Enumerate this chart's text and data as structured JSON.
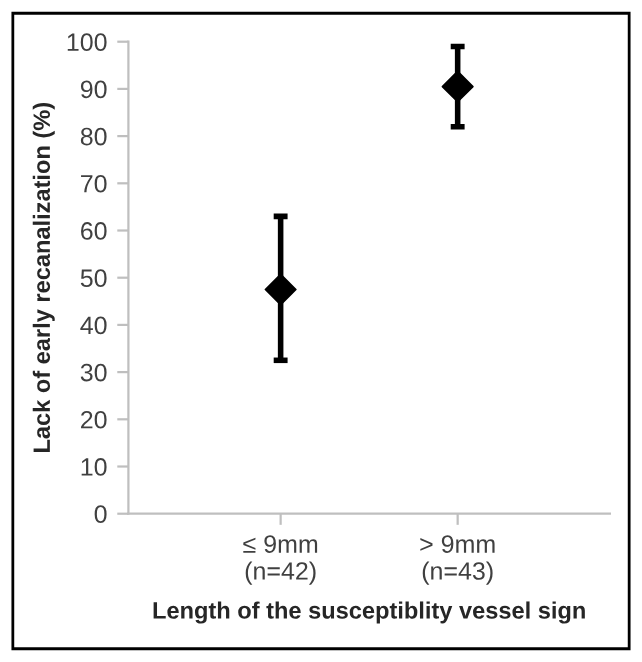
{
  "chart_data": {
    "type": "scatter",
    "xlabel": "Length of the susceptiblity vessel sign",
    "ylabel": "Lack of early recanalization (%)",
    "categories": [
      "≤ 9mm\n(n=42)",
      "> 9mm\n(n=43)"
    ],
    "values": [
      47.5,
      90.5
    ],
    "errors": [
      [
        32.5,
        63
      ],
      [
        82,
        99
      ]
    ],
    "color": "#000000",
    "marker": "diamond",
    "ylim": [
      0,
      100
    ],
    "yticks": [
      0,
      10,
      20,
      30,
      40,
      50,
      60,
      70,
      80,
      90,
      100
    ],
    "grid": false,
    "legend": false
  }
}
